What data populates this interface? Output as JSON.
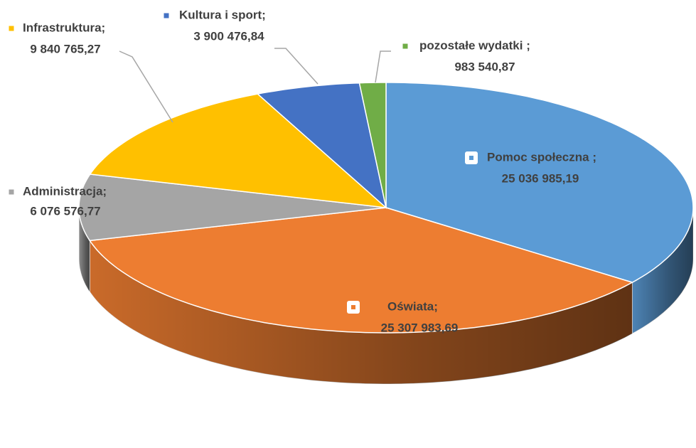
{
  "chart_data": {
    "type": "pie3d",
    "categories": [
      "Pomoc społeczna ;",
      "Oświata;",
      "Administracja;",
      "Infrastruktura;",
      "Kultura i sport;",
      "pozostałe wydatki ;"
    ],
    "values": [
      25036985.19,
      25307983.69,
      6076576.77,
      9840765.27,
      3900476.84,
      983540.87
    ],
    "value_labels": [
      "25 036 985,19",
      "25 307 983,69",
      "6 076 576,77",
      "9 840 765,27",
      "3 900 476,84",
      "983 540,87"
    ],
    "colors": [
      "#5b9bd5",
      "#ed7d31",
      "#a5a5a5",
      "#ffc000",
      "#4472c4",
      "#70ad47"
    ]
  }
}
